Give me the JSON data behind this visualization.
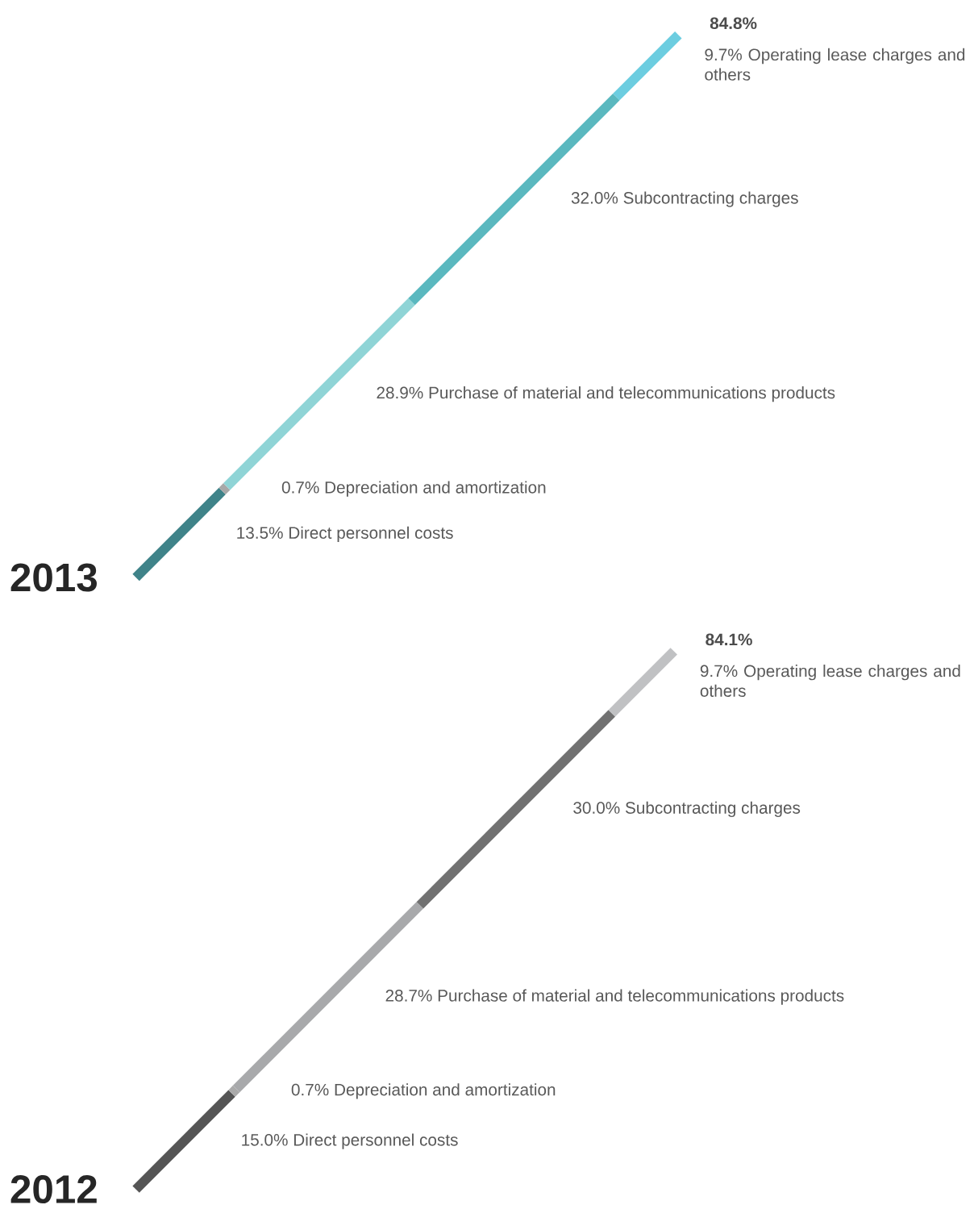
{
  "chart_data": [
    {
      "type": "other",
      "title": "2013",
      "categories": [
        "Direct personnel costs",
        "Depreciation and amortization",
        "Purchase of material and telecommunications products",
        "Subcontracting charges",
        "Operating lease charges and others"
      ],
      "values": [
        13.5,
        0.7,
        28.9,
        32.0,
        9.7
      ],
      "value_labels": [
        "13.5%",
        "0.7%",
        "28.9%",
        "32.0%",
        "9.7%"
      ],
      "colors": [
        "#3f8389",
        "#a8a8a8",
        "#8fd4d6",
        "#5ab8bf",
        "#6ccde0"
      ],
      "totals": [
        "84.8%"
      ]
    },
    {
      "type": "other",
      "title": "2012",
      "categories": [
        "Direct personnel costs",
        "Depreciation and amortization",
        "Purchase of material and telecommunications products",
        "Subcontracting charges",
        "Operating lease charges and others"
      ],
      "values": [
        15.0,
        0.7,
        28.7,
        30.0,
        9.7
      ],
      "value_labels": [
        "15.0%",
        "0.7%",
        "28.7%",
        "30.0%",
        "9.7%"
      ],
      "colors": [
        "#555555",
        "#aaaaaa",
        "#a8a9ab",
        "#717171",
        "#c0c1c3"
      ],
      "totals": [
        "84.1%"
      ]
    }
  ]
}
